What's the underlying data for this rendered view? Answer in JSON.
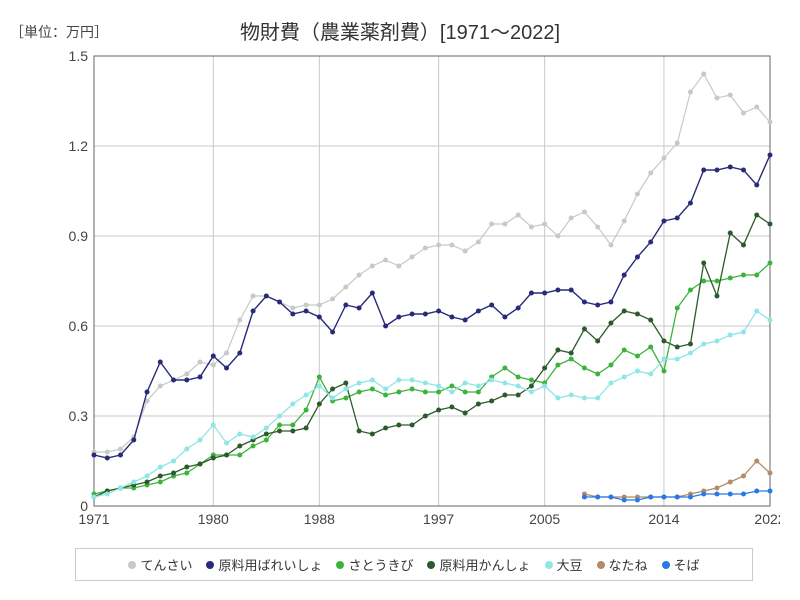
{
  "chart": {
    "type": "line",
    "y_unit_label": "［単位：万円］",
    "title": "物財費（農業薬剤費）[1971～2022]",
    "background_color": "#ffffff",
    "grid_color": "#c8c8c8",
    "axis_color": "#666666",
    "title_fontsize": 20,
    "label_fontsize": 14,
    "x": {
      "min": 1971,
      "max": 2022,
      "ticks": [
        1971,
        1980,
        1988,
        1997,
        2005,
        2014,
        2022
      ]
    },
    "y": {
      "min": 0,
      "max": 1.5,
      "ticks": [
        0,
        0.3,
        0.6,
        0.9,
        1.2,
        1.5
      ]
    },
    "series": [
      {
        "name": "てんさい",
        "color": "#c8c8c8",
        "line_width": 1.2,
        "marker_size": 2.5,
        "data": [
          [
            1971,
            0.18
          ],
          [
            1972,
            0.18
          ],
          [
            1973,
            0.19
          ],
          [
            1974,
            0.23
          ],
          [
            1975,
            0.35
          ],
          [
            1976,
            0.4
          ],
          [
            1977,
            0.42
          ],
          [
            1978,
            0.44
          ],
          [
            1979,
            0.48
          ],
          [
            1980,
            0.47
          ],
          [
            1981,
            0.51
          ],
          [
            1982,
            0.62
          ],
          [
            1983,
            0.7
          ],
          [
            1984,
            0.7
          ],
          [
            1985,
            0.68
          ],
          [
            1986,
            0.66
          ],
          [
            1987,
            0.67
          ],
          [
            1988,
            0.67
          ],
          [
            1989,
            0.69
          ],
          [
            1990,
            0.73
          ],
          [
            1991,
            0.77
          ],
          [
            1992,
            0.8
          ],
          [
            1993,
            0.82
          ],
          [
            1994,
            0.8
          ],
          [
            1995,
            0.83
          ],
          [
            1996,
            0.86
          ],
          [
            1997,
            0.87
          ],
          [
            1998,
            0.87
          ],
          [
            1999,
            0.85
          ],
          [
            2000,
            0.88
          ],
          [
            2001,
            0.94
          ],
          [
            2002,
            0.94
          ],
          [
            2003,
            0.97
          ],
          [
            2004,
            0.93
          ],
          [
            2005,
            0.94
          ],
          [
            2006,
            0.9
          ],
          [
            2007,
            0.96
          ],
          [
            2008,
            0.98
          ],
          [
            2009,
            0.93
          ],
          [
            2010,
            0.87
          ],
          [
            2011,
            0.95
          ],
          [
            2012,
            1.04
          ],
          [
            2013,
            1.11
          ],
          [
            2014,
            1.16
          ],
          [
            2015,
            1.21
          ],
          [
            2016,
            1.38
          ],
          [
            2017,
            1.44
          ],
          [
            2018,
            1.36
          ],
          [
            2019,
            1.37
          ],
          [
            2020,
            1.31
          ],
          [
            2021,
            1.33
          ],
          [
            2022,
            1.28
          ]
        ]
      },
      {
        "name": "原料用ばれいしょ",
        "color": "#2a2a7a",
        "line_width": 1.4,
        "marker_size": 2.5,
        "data": [
          [
            1971,
            0.17
          ],
          [
            1972,
            0.16
          ],
          [
            1973,
            0.17
          ],
          [
            1974,
            0.22
          ],
          [
            1975,
            0.38
          ],
          [
            1976,
            0.48
          ],
          [
            1977,
            0.42
          ],
          [
            1978,
            0.42
          ],
          [
            1979,
            0.43
          ],
          [
            1980,
            0.5
          ],
          [
            1981,
            0.46
          ],
          [
            1982,
            0.51
          ],
          [
            1983,
            0.65
          ],
          [
            1984,
            0.7
          ],
          [
            1985,
            0.68
          ],
          [
            1986,
            0.64
          ],
          [
            1987,
            0.65
          ],
          [
            1988,
            0.63
          ],
          [
            1989,
            0.58
          ],
          [
            1990,
            0.67
          ],
          [
            1991,
            0.66
          ],
          [
            1992,
            0.71
          ],
          [
            1993,
            0.6
          ],
          [
            1994,
            0.63
          ],
          [
            1995,
            0.64
          ],
          [
            1996,
            0.64
          ],
          [
            1997,
            0.65
          ],
          [
            1998,
            0.63
          ],
          [
            1999,
            0.62
          ],
          [
            2000,
            0.65
          ],
          [
            2001,
            0.67
          ],
          [
            2002,
            0.63
          ],
          [
            2003,
            0.66
          ],
          [
            2004,
            0.71
          ],
          [
            2005,
            0.71
          ],
          [
            2006,
            0.72
          ],
          [
            2007,
            0.72
          ],
          [
            2008,
            0.68
          ],
          [
            2009,
            0.67
          ],
          [
            2010,
            0.68
          ],
          [
            2011,
            0.77
          ],
          [
            2012,
            0.83
          ],
          [
            2013,
            0.88
          ],
          [
            2014,
            0.95
          ],
          [
            2015,
            0.96
          ],
          [
            2016,
            1.01
          ],
          [
            2017,
            1.12
          ],
          [
            2018,
            1.12
          ],
          [
            2019,
            1.13
          ],
          [
            2020,
            1.12
          ],
          [
            2021,
            1.07
          ],
          [
            2022,
            1.17
          ]
        ]
      },
      {
        "name": "さとうきび",
        "color": "#3cb43c",
        "line_width": 1.3,
        "marker_size": 2.5,
        "data": [
          [
            1971,
            0.04
          ],
          [
            1972,
            0.05
          ],
          [
            1973,
            0.06
          ],
          [
            1974,
            0.06
          ],
          [
            1975,
            0.07
          ],
          [
            1976,
            0.08
          ],
          [
            1977,
            0.1
          ],
          [
            1978,
            0.11
          ],
          [
            1979,
            0.14
          ],
          [
            1980,
            0.17
          ],
          [
            1981,
            0.17
          ],
          [
            1982,
            0.17
          ],
          [
            1983,
            0.2
          ],
          [
            1984,
            0.22
          ],
          [
            1985,
            0.27
          ],
          [
            1986,
            0.27
          ],
          [
            1987,
            0.32
          ],
          [
            1988,
            0.43
          ],
          [
            1989,
            0.35
          ],
          [
            1990,
            0.36
          ],
          [
            1991,
            0.38
          ],
          [
            1992,
            0.39
          ],
          [
            1993,
            0.37
          ],
          [
            1994,
            0.38
          ],
          [
            1995,
            0.39
          ],
          [
            1996,
            0.38
          ],
          [
            1997,
            0.38
          ],
          [
            1998,
            0.4
          ],
          [
            1999,
            0.38
          ],
          [
            2000,
            0.38
          ],
          [
            2001,
            0.43
          ],
          [
            2002,
            0.46
          ],
          [
            2003,
            0.43
          ],
          [
            2004,
            0.42
          ],
          [
            2005,
            0.41
          ],
          [
            2006,
            0.47
          ],
          [
            2007,
            0.49
          ],
          [
            2008,
            0.46
          ],
          [
            2009,
            0.44
          ],
          [
            2010,
            0.47
          ],
          [
            2011,
            0.52
          ],
          [
            2012,
            0.5
          ],
          [
            2013,
            0.53
          ],
          [
            2014,
            0.45
          ],
          [
            2015,
            0.66
          ],
          [
            2016,
            0.72
          ],
          [
            2017,
            0.75
          ],
          [
            2018,
            0.75
          ],
          [
            2019,
            0.76
          ],
          [
            2020,
            0.77
          ],
          [
            2021,
            0.77
          ],
          [
            2022,
            0.81
          ]
        ]
      },
      {
        "name": "原料用かんしょ",
        "color": "#2d5a2d",
        "line_width": 1.3,
        "marker_size": 2.5,
        "data": [
          [
            1971,
            0.03
          ],
          [
            1972,
            0.05
          ],
          [
            1973,
            0.06
          ],
          [
            1974,
            0.07
          ],
          [
            1975,
            0.08
          ],
          [
            1976,
            0.1
          ],
          [
            1977,
            0.11
          ],
          [
            1978,
            0.13
          ],
          [
            1979,
            0.14
          ],
          [
            1980,
            0.16
          ],
          [
            1981,
            0.17
          ],
          [
            1982,
            0.2
          ],
          [
            1983,
            0.22
          ],
          [
            1984,
            0.24
          ],
          [
            1985,
            0.25
          ],
          [
            1986,
            0.25
          ],
          [
            1987,
            0.26
          ],
          [
            1988,
            0.34
          ],
          [
            1989,
            0.39
          ],
          [
            1990,
            0.41
          ],
          [
            1991,
            0.25
          ],
          [
            1992,
            0.24
          ],
          [
            1993,
            0.26
          ],
          [
            1994,
            0.27
          ],
          [
            1995,
            0.27
          ],
          [
            1996,
            0.3
          ],
          [
            1997,
            0.32
          ],
          [
            1998,
            0.33
          ],
          [
            1999,
            0.31
          ],
          [
            2000,
            0.34
          ],
          [
            2001,
            0.35
          ],
          [
            2002,
            0.37
          ],
          [
            2003,
            0.37
          ],
          [
            2004,
            0.4
          ],
          [
            2005,
            0.46
          ],
          [
            2006,
            0.52
          ],
          [
            2007,
            0.51
          ],
          [
            2008,
            0.59
          ],
          [
            2009,
            0.55
          ],
          [
            2010,
            0.61
          ],
          [
            2011,
            0.65
          ],
          [
            2012,
            0.64
          ],
          [
            2013,
            0.62
          ],
          [
            2014,
            0.55
          ],
          [
            2015,
            0.53
          ],
          [
            2016,
            0.54
          ],
          [
            2017,
            0.81
          ],
          [
            2018,
            0.7
          ],
          [
            2019,
            0.91
          ],
          [
            2020,
            0.87
          ],
          [
            2021,
            0.97
          ],
          [
            2022,
            0.94
          ]
        ]
      },
      {
        "name": "大豆",
        "color": "#8fe6e6",
        "line_width": 1.3,
        "marker_size": 2.5,
        "data": [
          [
            1971,
            0.03
          ],
          [
            1972,
            0.04
          ],
          [
            1973,
            0.06
          ],
          [
            1974,
            0.08
          ],
          [
            1975,
            0.1
          ],
          [
            1976,
            0.13
          ],
          [
            1977,
            0.15
          ],
          [
            1978,
            0.19
          ],
          [
            1979,
            0.22
          ],
          [
            1980,
            0.27
          ],
          [
            1981,
            0.21
          ],
          [
            1982,
            0.24
          ],
          [
            1983,
            0.23
          ],
          [
            1984,
            0.26
          ],
          [
            1985,
            0.3
          ],
          [
            1986,
            0.34
          ],
          [
            1987,
            0.37
          ],
          [
            1988,
            0.4
          ],
          [
            1989,
            0.36
          ],
          [
            1990,
            0.39
          ],
          [
            1991,
            0.41
          ],
          [
            1992,
            0.42
          ],
          [
            1993,
            0.39
          ],
          [
            1994,
            0.42
          ],
          [
            1995,
            0.42
          ],
          [
            1996,
            0.41
          ],
          [
            1997,
            0.4
          ],
          [
            1998,
            0.38
          ],
          [
            1999,
            0.41
          ],
          [
            2000,
            0.4
          ],
          [
            2001,
            0.42
          ],
          [
            2002,
            0.41
          ],
          [
            2003,
            0.4
          ],
          [
            2004,
            0.38
          ],
          [
            2005,
            0.4
          ],
          [
            2006,
            0.36
          ],
          [
            2007,
            0.37
          ],
          [
            2008,
            0.36
          ],
          [
            2009,
            0.36
          ],
          [
            2010,
            0.41
          ],
          [
            2011,
            0.43
          ],
          [
            2012,
            0.45
          ],
          [
            2013,
            0.44
          ],
          [
            2014,
            0.49
          ],
          [
            2015,
            0.49
          ],
          [
            2016,
            0.51
          ],
          [
            2017,
            0.54
          ],
          [
            2018,
            0.55
          ],
          [
            2019,
            0.57
          ],
          [
            2020,
            0.58
          ],
          [
            2021,
            0.65
          ],
          [
            2022,
            0.62
          ]
        ]
      },
      {
        "name": "なたね",
        "color": "#b28c64",
        "line_width": 1.3,
        "marker_size": 2.5,
        "data": [
          [
            2008,
            0.04
          ],
          [
            2009,
            0.03
          ],
          [
            2010,
            0.03
          ],
          [
            2011,
            0.03
          ],
          [
            2012,
            0.03
          ],
          [
            2013,
            0.03
          ],
          [
            2014,
            0.03
          ],
          [
            2015,
            0.03
          ],
          [
            2016,
            0.04
          ],
          [
            2017,
            0.05
          ],
          [
            2018,
            0.06
          ],
          [
            2019,
            0.08
          ],
          [
            2020,
            0.1
          ],
          [
            2021,
            0.15
          ],
          [
            2022,
            0.11
          ]
        ]
      },
      {
        "name": "そば",
        "color": "#2878e6",
        "line_width": 1.3,
        "marker_size": 2.5,
        "data": [
          [
            2008,
            0.03
          ],
          [
            2009,
            0.03
          ],
          [
            2010,
            0.03
          ],
          [
            2011,
            0.02
          ],
          [
            2012,
            0.02
          ],
          [
            2013,
            0.03
          ],
          [
            2014,
            0.03
          ],
          [
            2015,
            0.03
          ],
          [
            2016,
            0.03
          ],
          [
            2017,
            0.04
          ],
          [
            2018,
            0.04
          ],
          [
            2019,
            0.04
          ],
          [
            2020,
            0.04
          ],
          [
            2021,
            0.05
          ],
          [
            2022,
            0.05
          ]
        ]
      }
    ]
  }
}
